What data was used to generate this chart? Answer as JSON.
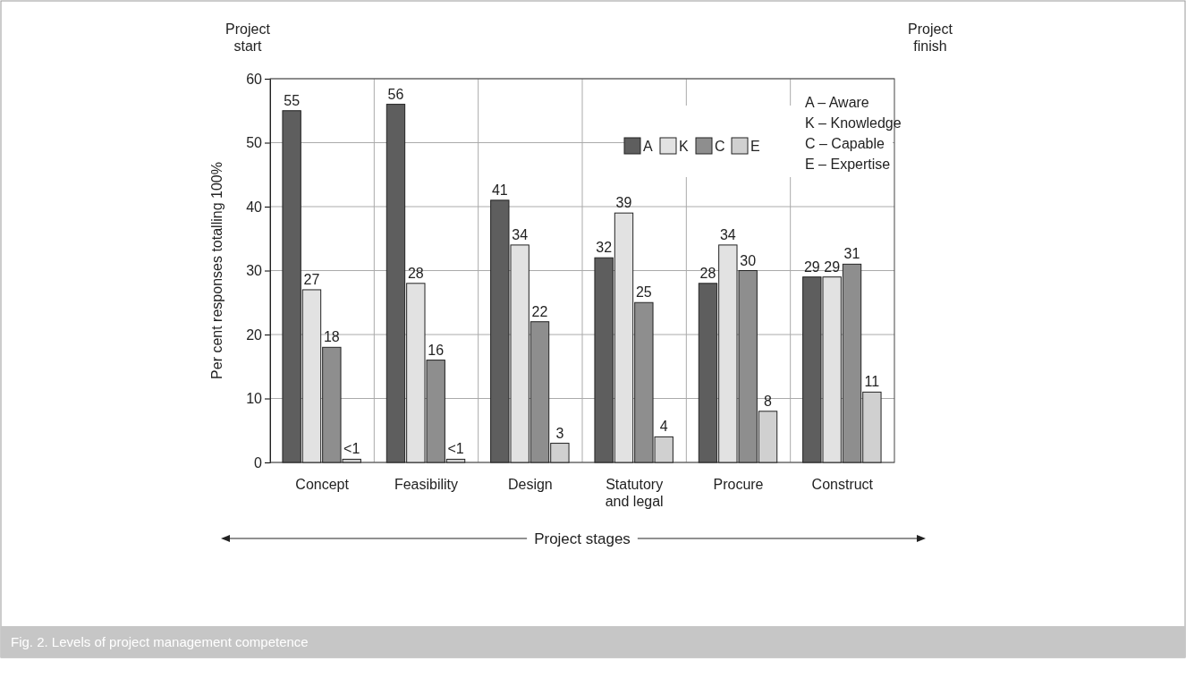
{
  "chart_data": {
    "type": "bar",
    "title": "Fig. 2. Levels of project management competence",
    "xlabel": "Project stages",
    "ylabel": "Per cent responses totalling 100%",
    "categories": [
      "Concept",
      "Feasibility",
      "Design",
      "Statutory\nand legal",
      "Procure",
      "Construct"
    ],
    "series": [
      {
        "name": "A",
        "color": "#5e5e5e",
        "values": [
          55,
          56,
          41,
          32,
          28,
          29
        ],
        "value_labels": [
          "55",
          "56",
          "41",
          "32",
          "28",
          "29"
        ]
      },
      {
        "name": "K",
        "color": "#e2e2e2",
        "values": [
          27,
          28,
          34,
          39,
          34,
          29
        ],
        "value_labels": [
          "27",
          "28",
          "34",
          "39",
          "34",
          "29"
        ]
      },
      {
        "name": "C",
        "color": "#8e8e8e",
        "values": [
          18,
          16,
          22,
          25,
          30,
          31
        ],
        "value_labels": [
          "18",
          "16",
          "22",
          "25",
          "30",
          "31"
        ]
      },
      {
        "name": "E",
        "color": "#d0d0d0",
        "values": [
          0.5,
          0.5,
          3,
          4,
          8,
          11
        ],
        "value_labels": [
          "<1",
          "<1",
          "3",
          "4",
          "8",
          "11"
        ]
      }
    ],
    "ylim": [
      0,
      60
    ],
    "yticks": [
      0,
      10,
      20,
      30,
      40,
      50,
      60
    ],
    "grid": true,
    "legend": "top right",
    "annotations": [
      "Project start",
      "Project finish",
      "A – Aware",
      "K – Knowledge",
      "C – Capable",
      "E – Expertise"
    ]
  }
}
